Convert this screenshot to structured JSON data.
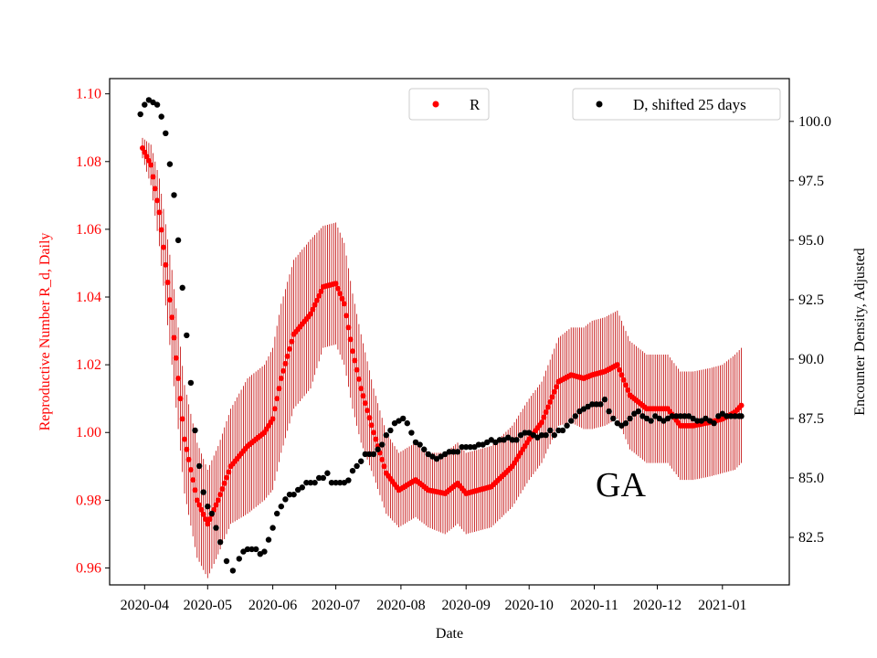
{
  "chart_data": {
    "type": "scatter",
    "title": "",
    "annotation": "GA",
    "xlabel": "Date",
    "ylabel_left": "Reproductive Number R_d, Daily",
    "ylabel_right": "Encounter Density, Adjusted",
    "ylim_left": [
      0.955,
      1.1045
    ],
    "ylim_right": [
      80.5,
      101.8
    ],
    "x_start": "2020-03-31",
    "x_end_day": 285,
    "x_tick_labels": [
      "2020-04",
      "2020-05",
      "2020-06",
      "2020-07",
      "2020-08",
      "2020-09",
      "2020-10",
      "2020-11",
      "2020-12",
      "2021-01"
    ],
    "x_tick_days": [
      1,
      31,
      62,
      92,
      123,
      154,
      184,
      215,
      245,
      276
    ],
    "y_left_ticks": [
      "0.96",
      "0.98",
      "1.00",
      "1.02",
      "1.04",
      "1.06",
      "1.08",
      "1.10"
    ],
    "y_right_ticks": [
      "82.5",
      "85.0",
      "87.5",
      "90.0",
      "92.5",
      "95.0",
      "97.5",
      "100.0"
    ],
    "colors": {
      "r_series": "#ff0000",
      "r_errorbar": "#c00000",
      "d_series": "#000000",
      "left_axis": "#ff0000"
    },
    "legend": {
      "r_label": "R",
      "d_label": "D, shifted 25 days",
      "r_position": "top-center",
      "d_position": "top-right"
    },
    "series": [
      {
        "name": "R",
        "axis": "left",
        "x": [
          0,
          4,
          8,
          14,
          20,
          26,
          31,
          36,
          42,
          50,
          58,
          62,
          66,
          72,
          80,
          86,
          92,
          96,
          100,
          104,
          110,
          116,
          122,
          130,
          136,
          144,
          150,
          154,
          160,
          166,
          176,
          184,
          190,
          198,
          204,
          210,
          214,
          220,
          226,
          232,
          240,
          246,
          250,
          256,
          262,
          270,
          276,
          282,
          285
        ],
        "values": [
          1.084,
          1.079,
          1.065,
          1.034,
          0.998,
          0.98,
          0.973,
          0.98,
          0.99,
          0.996,
          1.0,
          1.004,
          1.016,
          1.029,
          1.035,
          1.043,
          1.044,
          1.038,
          1.024,
          1.013,
          1.0,
          0.988,
          0.983,
          0.986,
          0.983,
          0.982,
          0.985,
          0.982,
          0.983,
          0.984,
          0.99,
          0.998,
          1.003,
          1.015,
          1.017,
          1.016,
          1.017,
          1.018,
          1.02,
          1.011,
          1.007,
          1.007,
          1.007,
          1.002,
          1.002,
          1.003,
          1.004,
          1.006,
          1.008
        ],
        "errors": [
          0.003,
          0.006,
          0.01,
          0.014,
          0.016,
          0.017,
          0.016,
          0.016,
          0.017,
          0.02,
          0.02,
          0.021,
          0.022,
          0.022,
          0.022,
          0.018,
          0.018,
          0.018,
          0.017,
          0.016,
          0.013,
          0.012,
          0.011,
          0.011,
          0.011,
          0.012,
          0.012,
          0.012,
          0.012,
          0.012,
          0.012,
          0.012,
          0.012,
          0.013,
          0.014,
          0.015,
          0.016,
          0.016,
          0.016,
          0.016,
          0.016,
          0.016,
          0.016,
          0.016,
          0.016,
          0.016,
          0.016,
          0.017,
          0.017
        ]
      },
      {
        "name": "D, shifted 25 days",
        "axis": "right",
        "x": [
          -1,
          1,
          3,
          5,
          7,
          9,
          11,
          13,
          15,
          17,
          19,
          21,
          23,
          25,
          27,
          29,
          31,
          33,
          35,
          37,
          40,
          43,
          46,
          48,
          50,
          52,
          54,
          56,
          58,
          60,
          62,
          64,
          66,
          68,
          70,
          72,
          74,
          76,
          78,
          80,
          82,
          84,
          86,
          88,
          90,
          92,
          94,
          96,
          98,
          100,
          102,
          104,
          106,
          108,
          110,
          112,
          114,
          116,
          118,
          120,
          122,
          124,
          126,
          128,
          130,
          132,
          134,
          136,
          138,
          140,
          142,
          144,
          146,
          148,
          150,
          152,
          154,
          156,
          158,
          160,
          162,
          164,
          166,
          168,
          170,
          172,
          174,
          176,
          178,
          180,
          182,
          184,
          186,
          188,
          190,
          192,
          194,
          196,
          198,
          200,
          202,
          204,
          206,
          208,
          210,
          212,
          214,
          216,
          218,
          220,
          222,
          224,
          226,
          228,
          230,
          232,
          234,
          236,
          238,
          240,
          242,
          244,
          246,
          248,
          250,
          252,
          254,
          256,
          258,
          260,
          262,
          264,
          266,
          268,
          270,
          272,
          274,
          276,
          278,
          280,
          282,
          284,
          285
        ],
        "values": [
          100.3,
          100.7,
          100.9,
          100.8,
          100.7,
          100.2,
          99.5,
          98.2,
          96.9,
          95.0,
          93.0,
          91.0,
          89.0,
          87.0,
          85.5,
          84.4,
          83.8,
          83.5,
          82.9,
          82.3,
          81.5,
          81.1,
          81.6,
          81.9,
          82.0,
          82.0,
          82.0,
          81.8,
          81.9,
          82.4,
          82.9,
          83.5,
          83.8,
          84.1,
          84.3,
          84.3,
          84.5,
          84.6,
          84.8,
          84.8,
          84.8,
          85.0,
          85.0,
          85.2,
          84.8,
          84.8,
          84.8,
          84.8,
          84.9,
          85.3,
          85.5,
          85.7,
          86.0,
          86.0,
          86.0,
          86.2,
          86.4,
          86.8,
          87.0,
          87.3,
          87.4,
          87.5,
          87.3,
          86.9,
          86.5,
          86.4,
          86.2,
          86.0,
          85.9,
          85.8,
          85.9,
          86.0,
          86.1,
          86.1,
          86.1,
          86.3,
          86.3,
          86.3,
          86.3,
          86.4,
          86.4,
          86.5,
          86.6,
          86.5,
          86.6,
          86.6,
          86.7,
          86.6,
          86.6,
          86.8,
          86.9,
          86.9,
          86.8,
          86.7,
          86.8,
          86.8,
          87.0,
          86.8,
          87.0,
          87.0,
          87.2,
          87.4,
          87.6,
          87.8,
          87.9,
          88.0,
          88.1,
          88.1,
          88.1,
          88.3,
          87.8,
          87.5,
          87.3,
          87.2,
          87.3,
          87.5,
          87.7,
          87.8,
          87.6,
          87.5,
          87.4,
          87.6,
          87.5,
          87.4,
          87.5,
          87.6,
          87.6,
          87.6,
          87.6,
          87.6,
          87.5,
          87.4,
          87.4,
          87.5,
          87.4,
          87.3,
          87.6,
          87.7,
          87.6,
          87.6,
          87.6,
          87.6,
          87.6
        ]
      }
    ]
  }
}
